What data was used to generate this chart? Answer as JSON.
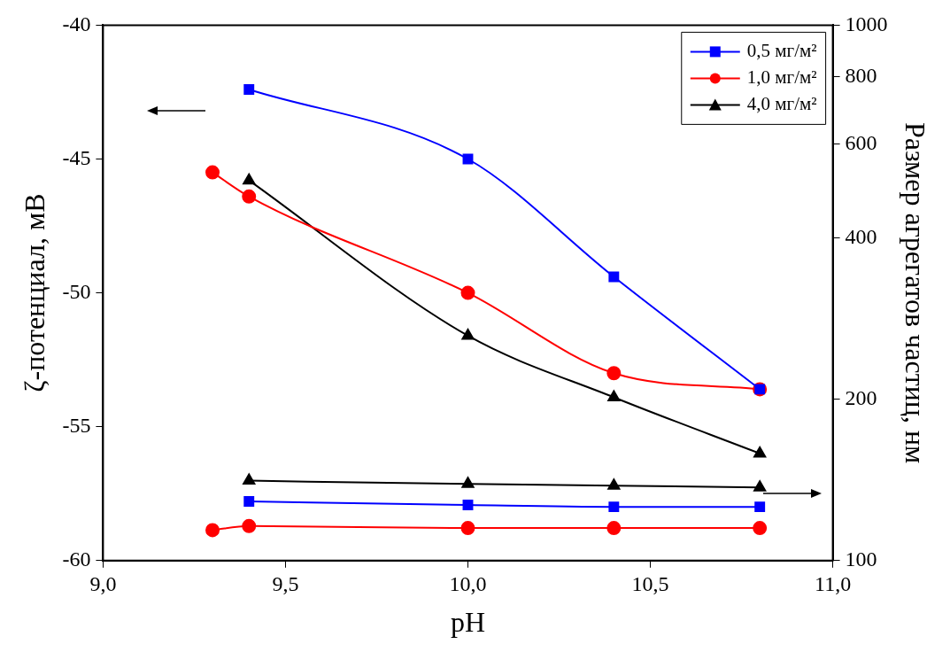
{
  "chart_data": {
    "type": "line",
    "xlabel": "pH",
    "ylabel": "ζ-потенциал, мВ",
    "y2label": "Размер агрегатов частиц, нм",
    "xlim": [
      9,
      11
    ],
    "xticks": [
      {
        "value": 9,
        "label": "9,0"
      },
      {
        "value": 9.5,
        "label": "9,5"
      },
      {
        "value": 10,
        "label": "10,0"
      },
      {
        "value": 10.5,
        "label": "10,5"
      },
      {
        "value": 11,
        "label": "11,0"
      }
    ],
    "ylim": [
      -60,
      -40
    ],
    "yticks": [
      -60,
      -55,
      -50,
      -45,
      -40
    ],
    "y2lim": [
      100,
      1000
    ],
    "y2ticks": [
      100,
      200,
      400,
      600,
      800,
      1000
    ],
    "log": "y2",
    "grid": false,
    "legend": "top right",
    "line_style": "solid",
    "series": [
      {
        "name": "0,5 мг/м²",
        "color": "#0000ff",
        "marker": "square",
        "x": [
          9.4,
          10.0,
          10.4,
          10.8
        ],
        "values": [
          -42.4,
          -45.0,
          -49.4,
          -53.6
        ]
      },
      {
        "name": "1,0 мг/м²",
        "color": "#ff0000",
        "marker": "circle",
        "x": [
          9.3,
          9.4,
          10.0,
          10.4,
          10.8
        ],
        "values": [
          -45.5,
          -46.4,
          -50.0,
          -53.0,
          -53.6
        ]
      },
      {
        "name": "4,0 мг/м²",
        "color": "#000000",
        "marker": "triangle",
        "x": [
          9.4,
          10.0,
          10.4,
          10.8
        ],
        "values": [
          -45.8,
          -51.6,
          -53.9,
          -56.0
        ]
      },
      {
        "color": "#000000",
        "marker": "triangle",
        "axis": "y2",
        "x": [
          9.4,
          10.0,
          10.4,
          10.8
        ],
        "values": [
          141,
          139,
          138,
          137
        ]
      },
      {
        "color": "#0000ff",
        "marker": "square",
        "axis": "y2",
        "x": [
          9.4,
          10.0,
          10.4,
          10.8
        ],
        "values": [
          129,
          127,
          126,
          126
        ]
      },
      {
        "color": "#ff0000",
        "marker": "circle",
        "axis": "y2",
        "x": [
          9.3,
          9.4,
          10.0,
          10.4,
          10.8
        ],
        "values": [
          114,
          116,
          115,
          115,
          115
        ]
      }
    ]
  }
}
